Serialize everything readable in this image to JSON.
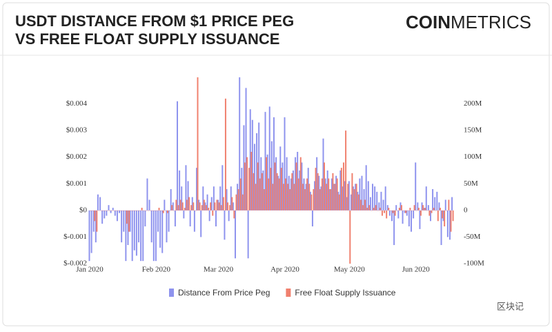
{
  "chart_data": {
    "type": "bar",
    "title": [
      "USDT DISTANCE FROM $1 PRICE PEG",
      "VS FREE FLOAT SUPPLY ISSUANCE"
    ],
    "brand": [
      "COIN",
      "METRICS"
    ],
    "watermark": "区块记",
    "categories": [
      "Jan 2020",
      null,
      null,
      null,
      null,
      null,
      null,
      null,
      null,
      null,
      null,
      null,
      null,
      null,
      null,
      null,
      null,
      null,
      null,
      null,
      null,
      null,
      null,
      null,
      null,
      null,
      null,
      null,
      null,
      null,
      null,
      "Feb 2020",
      null,
      null,
      null,
      null,
      null,
      null,
      null,
      null,
      null,
      null,
      null,
      null,
      null,
      null,
      null,
      null,
      null,
      null,
      null,
      null,
      null,
      null,
      null,
      null,
      null,
      null,
      null,
      null,
      "Mar 2020",
      null,
      null,
      null,
      null,
      null,
      null,
      null,
      null,
      null,
      null,
      null,
      null,
      null,
      null,
      null,
      null,
      null,
      null,
      null,
      null,
      null,
      null,
      null,
      null,
      null,
      null,
      null,
      null,
      null,
      null,
      "Apr 2020",
      null,
      null,
      null,
      null,
      null,
      null,
      null,
      null,
      null,
      null,
      null,
      null,
      null,
      null,
      null,
      null,
      null,
      null,
      null,
      null,
      null,
      null,
      null,
      null,
      null,
      null,
      null,
      null,
      null,
      "May 2020",
      null,
      null,
      null,
      null,
      null,
      null,
      null,
      null,
      null,
      null,
      null,
      null,
      null,
      null,
      null,
      null,
      null,
      null,
      null,
      null,
      null,
      null,
      null,
      null,
      null,
      null,
      null,
      null,
      null,
      null,
      "Jun 2020",
      null,
      null,
      null,
      null,
      null,
      null,
      null,
      null,
      null,
      null,
      null,
      null,
      null,
      null,
      null,
      null,
      null
    ],
    "series": [
      {
        "name": "Distance From Price Peg",
        "color": "#8e93ee",
        "axis": "y",
        "values": [
          -0.0019,
          -0.0016,
          -0.0008,
          -0.0012,
          0.0006,
          0.0005,
          -0.0005,
          -0.0003,
          -0.0002,
          0.0002,
          -0.0001,
          0.0001,
          -0.0002,
          -0.0004,
          -0.0001,
          -0.0012,
          -0.0008,
          -0.0019,
          -0.0013,
          -0.0008,
          -0.0019,
          -0.0015,
          -0.0017,
          -0.0012,
          -0.0019,
          -0.0019,
          -0.0006,
          0.0012,
          0.0004,
          -0.0012,
          -0.0019,
          -0.0019,
          -0.0008,
          -0.0014,
          -0.0016,
          0.0004,
          -0.0012,
          -0.0008,
          0.0008,
          0.0003,
          -0.0006,
          0.0041,
          0.0015,
          0.0009,
          -0.0003,
          0.0017,
          0.0011,
          -0.0006,
          0.0005,
          -0.0008,
          0.0016,
          0.0004,
          -0.001,
          0.0009,
          0.0003,
          0.0006,
          -0.0004,
          0.0005,
          0.0009,
          -0.0006,
          0.0004,
          0.0009,
          0.0017,
          -0.0011,
          0.0008,
          -0.0004,
          0.0009,
          0.0003,
          -0.0018,
          0.001,
          0.005,
          0.0016,
          0.0032,
          0.0046,
          -0.0018,
          0.0038,
          0.0034,
          0.0025,
          0.0029,
          0.0033,
          0.002,
          0.0015,
          0.0037,
          0.0021,
          0.0039,
          0.0026,
          0.0035,
          0.002,
          0.0013,
          0.0024,
          0.0018,
          0.0035,
          0.002,
          0.0013,
          0.0012,
          0.0015,
          0.002,
          0.0022,
          0.0015,
          0.0018,
          0.0012,
          0.001,
          0.0016,
          0.0007,
          -0.0006,
          0.0011,
          0.002,
          0.0013,
          0.0009,
          0.0027,
          0.0012,
          0.0015,
          0.0008,
          0.0012,
          0.001,
          0.0013,
          0.0007,
          0.0015,
          0.0009,
          0.0011,
          0.0005,
          0.0011,
          0.0006,
          0.0009,
          0.001,
          0.0007,
          0.0012,
          0.0013,
          0.0008,
          0.0017,
          0.0011,
          0.0005,
          0.001,
          0.0009,
          0.0007,
          0.0003,
          0.0007,
          0.0004,
          0.0009,
          0.0002,
          -0.0002,
          -0.0004,
          -0.0013,
          0.0002,
          -0.0003,
          0.0003,
          -0.0005,
          -0.0001,
          -0.0002,
          -0.0006,
          -0.0008,
          -0.0003,
          0.0018,
          0.0003,
          -0.0007,
          0.0003,
          0.0001,
          0.0009,
          0.0002,
          -0.0004,
          0.0008,
          0.0005,
          0.0007,
          0.0003,
          -0.0013,
          -0.0004,
          0.0004,
          -0.001,
          -0.0011,
          0.0005
        ]
      },
      {
        "name": "Free Float Supply Issuance",
        "color": "#f0806e",
        "axis": "y2",
        "values": [
          0,
          0,
          -20,
          -40,
          0,
          0,
          0,
          0,
          0,
          0,
          0,
          0,
          0,
          0,
          0,
          0,
          0,
          -25,
          -40,
          0,
          0,
          0,
          0,
          0,
          5,
          0,
          0,
          0,
          0,
          0,
          0,
          0,
          5,
          0,
          -5,
          0,
          -5,
          0,
          10,
          0,
          20,
          10,
          20,
          15,
          5,
          20,
          25,
          10,
          15,
          0,
          250,
          15,
          10,
          20,
          10,
          5,
          15,
          -10,
          15,
          20,
          15,
          10,
          25,
          210,
          15,
          10,
          25,
          -15,
          30,
          40,
          60,
          30,
          90,
          100,
          80,
          110,
          70,
          50,
          90,
          60,
          70,
          40,
          100,
          60,
          80,
          50,
          90,
          70,
          60,
          80,
          50,
          60,
          50,
          40,
          70,
          50,
          90,
          60,
          100,
          50,
          40,
          60,
          50,
          30,
          40,
          80,
          70,
          40,
          60,
          90,
          50,
          60,
          40,
          70,
          50,
          60,
          30,
          80,
          90,
          150,
          50,
          -100,
          70,
          40,
          50,
          30,
          20,
          10,
          20,
          5,
          10,
          0,
          5,
          10,
          0,
          5,
          -10,
          -5,
          -15,
          5,
          0,
          -5,
          -10,
          0,
          5,
          10,
          0,
          -5,
          0,
          5,
          0,
          10,
          0,
          5,
          -10,
          10,
          5,
          0,
          -10,
          -5,
          5,
          0,
          -20,
          5,
          -15,
          -30,
          0,
          20,
          -40,
          -20
        ]
      }
    ],
    "ylim": [
      -0.002,
      0.005
    ],
    "yticks": [
      {
        "value": -0.002,
        "label": "$-0.002"
      },
      {
        "value": -0.001,
        "label": "$-0.001"
      },
      {
        "value": 0,
        "label": "$0"
      },
      {
        "value": 0.001,
        "label": "$0.001"
      },
      {
        "value": 0.002,
        "label": "$0.002"
      },
      {
        "value": 0.003,
        "label": "$0.003"
      },
      {
        "value": 0.004,
        "label": "$0.004"
      }
    ],
    "y2lim": [
      -100,
      250
    ],
    "y2ticks": [
      {
        "value": -100,
        "label": "-100M"
      },
      {
        "value": -50,
        "label": "-50M"
      },
      0,
      {
        "value": 50,
        "label": "50M"
      },
      {
        "value": 100,
        "label": "100M"
      },
      {
        "value": 150,
        "label": "150M"
      },
      {
        "value": 200,
        "label": "200M"
      }
    ],
    "legend": "bottom"
  }
}
